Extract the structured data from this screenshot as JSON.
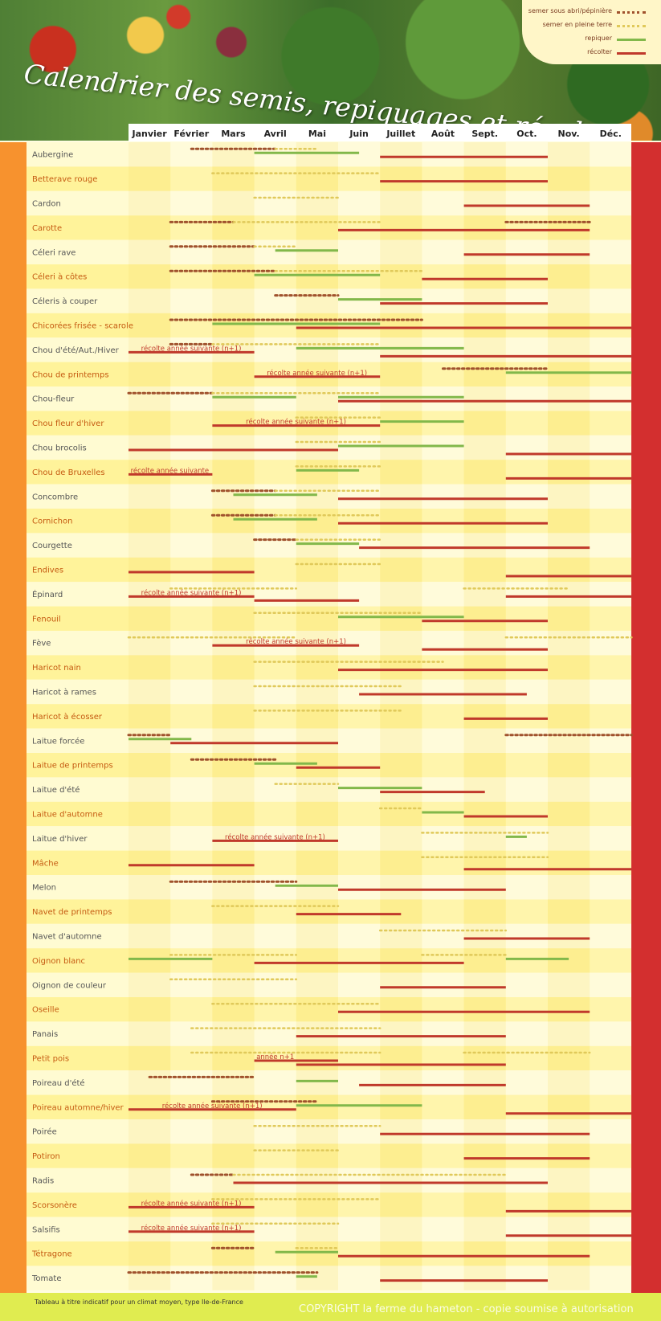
{
  "title": "Calendrier des semis, repiquages et récoltes",
  "legend": {
    "items": [
      {
        "label": "semer sous abri/pépinière",
        "style": "dots",
        "color": "#a0522d"
      },
      {
        "label": "semer en pleine terre",
        "style": "dots-light",
        "color": "#e0c95a"
      },
      {
        "label": "repiquer",
        "style": "line",
        "color": "#82b84a"
      },
      {
        "label": "récolter",
        "style": "line",
        "color": "#c0392b"
      }
    ]
  },
  "footer": {
    "note": "Tableau à titre indicatif pour un climat moyen, type Ile-de-France",
    "copyright": "COPYRIGHT la ferme du hameton - copie soumise à autorisation"
  },
  "colors": {
    "sous_abri": "#a0522d",
    "pleine_terre": "#e0c95a",
    "repiquer": "#82b84a",
    "recolter": "#c0392b",
    "label_orange": "#c55a11",
    "label_gray": "#555555"
  },
  "chart_data": {
    "type": "gantt",
    "months": [
      "Janvier",
      "Février",
      "Mars",
      "Avril",
      "Mai",
      "Juin",
      "Juillet",
      "Août",
      "Sept.",
      "Oct.",
      "Nov.",
      "Déc."
    ],
    "x_unit": "month (1 = début janvier, 13 = fin décembre)",
    "rows": [
      {
        "name": "Aubergine",
        "sous_abri": [
          [
            2.5,
            4.5
          ]
        ],
        "pleine_terre": [
          [
            4.5,
            5.5
          ]
        ],
        "repiquer": [
          [
            4,
            6.5
          ]
        ],
        "recolter": [
          [
            7,
            11
          ]
        ],
        "labels": []
      },
      {
        "name": "Betterave rouge",
        "sous_abri": [],
        "pleine_terre": [
          [
            3,
            7
          ]
        ],
        "repiquer": [],
        "recolter": [
          [
            7,
            11
          ]
        ],
        "labels": []
      },
      {
        "name": "Cardon",
        "sous_abri": [],
        "pleine_terre": [
          [
            4,
            6
          ]
        ],
        "repiquer": [],
        "recolter": [
          [
            9,
            12
          ]
        ],
        "labels": []
      },
      {
        "name": "Carotte",
        "sous_abri": [
          [
            2,
            3.5
          ],
          [
            10,
            12
          ]
        ],
        "pleine_terre": [
          [
            3.5,
            7
          ]
        ],
        "repiquer": [],
        "recolter": [
          [
            6,
            12
          ]
        ],
        "labels": []
      },
      {
        "name": "Céleri rave",
        "sous_abri": [
          [
            2,
            4
          ]
        ],
        "pleine_terre": [
          [
            4,
            5
          ]
        ],
        "repiquer": [
          [
            4.5,
            6
          ]
        ],
        "recolter": [
          [
            9,
            12
          ]
        ],
        "labels": []
      },
      {
        "name": "Céleri à côtes",
        "sous_abri": [
          [
            2,
            4.5
          ]
        ],
        "pleine_terre": [
          [
            4.5,
            8
          ]
        ],
        "repiquer": [
          [
            4,
            7
          ]
        ],
        "recolter": [
          [
            8,
            11
          ]
        ],
        "labels": []
      },
      {
        "name": "Céleris à couper",
        "sous_abri": [
          [
            4.5,
            6
          ]
        ],
        "pleine_terre": [],
        "repiquer": [
          [
            6,
            8
          ]
        ],
        "recolter": [
          [
            7,
            11
          ]
        ],
        "labels": []
      },
      {
        "name": "Chicorées frisée - scarole",
        "sous_abri": [
          [
            2,
            8
          ]
        ],
        "pleine_terre": [],
        "repiquer": [
          [
            3,
            7
          ]
        ],
        "recolter": [
          [
            5,
            13
          ]
        ],
        "labels": []
      },
      {
        "name": "Chou d'été/Aut./Hiver",
        "sous_abri": [
          [
            2,
            3
          ]
        ],
        "pleine_terre": [
          [
            3,
            7
          ]
        ],
        "repiquer": [
          [
            5,
            9
          ]
        ],
        "recolter": [
          [
            1,
            4
          ],
          [
            7,
            13
          ]
        ],
        "labels": [
          {
            "text": "récolte année suivante (n+1)",
            "x": 1.3
          }
        ]
      },
      {
        "name": "Chou de printemps",
        "sous_abri": [
          [
            8.5,
            11
          ]
        ],
        "pleine_terre": [],
        "repiquer": [
          [
            10,
            13
          ]
        ],
        "recolter": [
          [
            4,
            7
          ]
        ],
        "labels": [
          {
            "text": "récolte année suivante (n+1)",
            "x": 4.3
          }
        ]
      },
      {
        "name": "Chou-fleur",
        "sous_abri": [
          [
            1,
            3
          ]
        ],
        "pleine_terre": [
          [
            3,
            7
          ]
        ],
        "repiquer": [
          [
            3,
            5
          ],
          [
            6,
            9
          ]
        ],
        "recolter": [
          [
            6,
            13
          ]
        ],
        "labels": []
      },
      {
        "name": "Chou fleur d'hiver",
        "sous_abri": [],
        "pleine_terre": [
          [
            5,
            7
          ]
        ],
        "repiquer": [
          [
            7,
            9
          ]
        ],
        "recolter": [
          [
            3,
            7
          ]
        ],
        "labels": [
          {
            "text": "récolte année suivante (n+1)",
            "x": 3.8
          }
        ]
      },
      {
        "name": "Chou brocolis",
        "sous_abri": [],
        "pleine_terre": [
          [
            5,
            7
          ]
        ],
        "repiquer": [
          [
            6,
            9
          ]
        ],
        "recolter": [
          [
            1,
            6
          ],
          [
            10,
            13
          ]
        ],
        "labels": []
      },
      {
        "name": "Chou de Bruxelles",
        "sous_abri": [],
        "pleine_terre": [
          [
            5,
            7
          ]
        ],
        "repiquer": [
          [
            5,
            6.5
          ]
        ],
        "recolter": [
          [
            1,
            3
          ],
          [
            10,
            13
          ]
        ],
        "labels": [
          {
            "text": "récolte année suivante",
            "x": 1.05
          }
        ]
      },
      {
        "name": "Concombre",
        "sous_abri": [
          [
            3,
            4.5
          ]
        ],
        "pleine_terre": [
          [
            4.5,
            7
          ]
        ],
        "repiquer": [
          [
            3.5,
            5.5
          ]
        ],
        "recolter": [
          [
            6,
            11
          ]
        ],
        "labels": []
      },
      {
        "name": "Cornichon",
        "sous_abri": [
          [
            3,
            4.5
          ]
        ],
        "pleine_terre": [
          [
            4.5,
            7
          ]
        ],
        "repiquer": [
          [
            3.5,
            5.5
          ]
        ],
        "recolter": [
          [
            6,
            11
          ]
        ],
        "labels": []
      },
      {
        "name": "Courgette",
        "sous_abri": [
          [
            4,
            5
          ]
        ],
        "pleine_terre": [
          [
            5,
            7
          ]
        ],
        "repiquer": [
          [
            5,
            6.5
          ]
        ],
        "recolter": [
          [
            6.5,
            12
          ]
        ],
        "labels": []
      },
      {
        "name": "Endives",
        "sous_abri": [],
        "pleine_terre": [
          [
            5,
            7
          ]
        ],
        "repiquer": [],
        "recolter": [
          [
            1,
            4
          ],
          [
            10,
            13
          ]
        ],
        "labels": []
      },
      {
        "name": "Épinard",
        "sous_abri": [],
        "pleine_terre": [
          [
            2,
            5
          ],
          [
            9,
            11.5
          ]
        ],
        "repiquer": [],
        "recolter": [
          [
            1,
            4
          ],
          [
            4,
            6.5
          ],
          [
            10,
            13
          ]
        ],
        "labels": [
          {
            "text": "récolte année suivante (n+1)",
            "x": 1.3
          }
        ]
      },
      {
        "name": "Fenouil",
        "sous_abri": [],
        "pleine_terre": [
          [
            4,
            8
          ]
        ],
        "repiquer": [
          [
            6,
            9
          ]
        ],
        "recolter": [
          [
            8,
            11
          ]
        ],
        "labels": []
      },
      {
        "name": "Fève",
        "sous_abri": [],
        "pleine_terre": [
          [
            1,
            5
          ],
          [
            10,
            13
          ]
        ],
        "repiquer": [],
        "recolter": [
          [
            3,
            6.5
          ],
          [
            8,
            11
          ]
        ],
        "labels": [
          {
            "text": "récolte année suivante (n+1)",
            "x": 3.8
          }
        ]
      },
      {
        "name": "Haricot nain",
        "sous_abri": [],
        "pleine_terre": [
          [
            4,
            8.5
          ]
        ],
        "repiquer": [],
        "recolter": [
          [
            6,
            11
          ]
        ],
        "labels": []
      },
      {
        "name": "Haricot à rames",
        "sous_abri": [],
        "pleine_terre": [
          [
            4,
            7.5
          ]
        ],
        "repiquer": [],
        "recolter": [
          [
            6.5,
            10.5
          ]
        ],
        "labels": []
      },
      {
        "name": "Haricot à écosser",
        "sous_abri": [],
        "pleine_terre": [
          [
            4,
            7.5
          ]
        ],
        "repiquer": [],
        "recolter": [
          [
            9,
            11
          ]
        ],
        "labels": []
      },
      {
        "name": "Laitue forcée",
        "sous_abri": [
          [
            1,
            2
          ],
          [
            10,
            13
          ]
        ],
        "pleine_terre": [],
        "repiquer": [
          [
            1,
            2.5
          ]
        ],
        "recolter": [
          [
            2,
            6
          ]
        ],
        "labels": []
      },
      {
        "name": "Laitue de printemps",
        "sous_abri": [
          [
            2.5,
            4.5
          ]
        ],
        "pleine_terre": [],
        "repiquer": [
          [
            4,
            5.5
          ]
        ],
        "recolter": [
          [
            5,
            7
          ]
        ],
        "labels": []
      },
      {
        "name": "Laitue d'été",
        "sous_abri": [],
        "pleine_terre": [
          [
            4.5,
            6
          ]
        ],
        "repiquer": [
          [
            6,
            8
          ]
        ],
        "recolter": [
          [
            7,
            9.5
          ]
        ],
        "labels": []
      },
      {
        "name": "Laitue d'automne",
        "sous_abri": [],
        "pleine_terre": [
          [
            7,
            8
          ]
        ],
        "repiquer": [
          [
            8,
            9
          ]
        ],
        "recolter": [
          [
            9,
            11
          ]
        ],
        "labels": []
      },
      {
        "name": "Laitue d'hiver",
        "sous_abri": [],
        "pleine_terre": [
          [
            8,
            11
          ]
        ],
        "repiquer": [
          [
            10,
            10.5
          ]
        ],
        "recolter": [
          [
            3,
            6
          ]
        ],
        "labels": [
          {
            "text": "récolte année suivante (n+1)",
            "x": 3.3
          }
        ]
      },
      {
        "name": "Mâche",
        "sous_abri": [],
        "pleine_terre": [
          [
            8,
            11
          ]
        ],
        "repiquer": [],
        "recolter": [
          [
            1,
            4
          ],
          [
            9,
            13
          ]
        ],
        "labels": []
      },
      {
        "name": "Melon",
        "sous_abri": [
          [
            2,
            5
          ]
        ],
        "pleine_terre": [],
        "repiquer": [
          [
            4.5,
            6
          ]
        ],
        "recolter": [
          [
            6,
            10
          ]
        ],
        "labels": []
      },
      {
        "name": "Navet de printemps",
        "sous_abri": [],
        "pleine_terre": [
          [
            3,
            6
          ]
        ],
        "repiquer": [],
        "recolter": [
          [
            5,
            7.5
          ]
        ],
        "labels": []
      },
      {
        "name": "Navet d'automne",
        "sous_abri": [],
        "pleine_terre": [
          [
            7,
            10
          ]
        ],
        "repiquer": [],
        "recolter": [
          [
            9,
            12
          ]
        ],
        "labels": []
      },
      {
        "name": "Oignon blanc",
        "sous_abri": [],
        "pleine_terre": [
          [
            2,
            5
          ],
          [
            8,
            10
          ]
        ],
        "repiquer": [
          [
            1,
            3
          ],
          [
            10,
            11.5
          ]
        ],
        "recolter": [
          [
            4,
            9
          ]
        ],
        "labels": []
      },
      {
        "name": "Oignon de couleur",
        "sous_abri": [],
        "pleine_terre": [
          [
            2,
            5
          ]
        ],
        "repiquer": [],
        "recolter": [
          [
            7,
            10
          ]
        ],
        "labels": []
      },
      {
        "name": "Oseille",
        "sous_abri": [],
        "pleine_terre": [
          [
            3,
            7
          ]
        ],
        "repiquer": [],
        "recolter": [
          [
            6,
            12
          ]
        ],
        "labels": []
      },
      {
        "name": "Panais",
        "sous_abri": [],
        "pleine_terre": [
          [
            2.5,
            7
          ]
        ],
        "repiquer": [],
        "recolter": [
          [
            5,
            10
          ]
        ],
        "labels": []
      },
      {
        "name": "Petit pois",
        "sous_abri": [],
        "pleine_terre": [
          [
            2.5,
            7
          ],
          [
            9,
            12
          ]
        ],
        "repiquer": [],
        "recolter": [
          [
            4,
            6
          ],
          [
            5,
            10
          ]
        ],
        "labels": [
          {
            "text": "année n+1",
            "x": 4.05
          }
        ]
      },
      {
        "name": "Poireau d'été",
        "sous_abri": [
          [
            1.5,
            4
          ]
        ],
        "pleine_terre": [],
        "repiquer": [
          [
            5,
            6
          ]
        ],
        "recolter": [
          [
            6.5,
            10
          ]
        ],
        "labels": []
      },
      {
        "name": "Poireau automne/hiver",
        "sous_abri": [
          [
            3,
            5.5
          ]
        ],
        "pleine_terre": [],
        "repiquer": [
          [
            5,
            8
          ]
        ],
        "recolter": [
          [
            1,
            5
          ],
          [
            10,
            13
          ]
        ],
        "labels": [
          {
            "text": "récolte année suivante (n+1)",
            "x": 1.8
          }
        ]
      },
      {
        "name": "Poirée",
        "sous_abri": [],
        "pleine_terre": [
          [
            4,
            7
          ]
        ],
        "repiquer": [],
        "recolter": [
          [
            7,
            12
          ]
        ],
        "labels": []
      },
      {
        "name": "Potiron",
        "sous_abri": [],
        "pleine_terre": [
          [
            4,
            6
          ]
        ],
        "repiquer": [],
        "recolter": [
          [
            9,
            12
          ]
        ],
        "labels": []
      },
      {
        "name": "Radis",
        "sous_abri": [
          [
            2.5,
            3.5
          ]
        ],
        "pleine_terre": [
          [
            3.5,
            10
          ]
        ],
        "repiquer": [],
        "recolter": [
          [
            3.5,
            11
          ]
        ],
        "labels": []
      },
      {
        "name": "Scorsonère",
        "sous_abri": [],
        "pleine_terre": [
          [
            3,
            7
          ]
        ],
        "repiquer": [],
        "recolter": [
          [
            1,
            4
          ],
          [
            10,
            13
          ]
        ],
        "labels": [
          {
            "text": "récolte année suivante (n+1)",
            "x": 1.3
          }
        ]
      },
      {
        "name": "Salsifis",
        "sous_abri": [],
        "pleine_terre": [
          [
            3,
            6
          ]
        ],
        "repiquer": [],
        "recolter": [
          [
            1,
            4
          ],
          [
            10,
            13
          ]
        ],
        "labels": [
          {
            "text": "récolte année suivante (n+1)",
            "x": 1.3
          }
        ]
      },
      {
        "name": "Tétragone",
        "sous_abri": [
          [
            3,
            4
          ]
        ],
        "pleine_terre": [
          [
            5,
            6
          ]
        ],
        "repiquer": [
          [
            4.5,
            6
          ]
        ],
        "recolter": [
          [
            6,
            12
          ]
        ],
        "labels": []
      },
      {
        "name": "Tomate",
        "sous_abri": [
          [
            1,
            5.5
          ]
        ],
        "pleine_terre": [],
        "repiquer": [
          [
            5,
            5.5
          ]
        ],
        "recolter": [
          [
            7,
            11
          ]
        ],
        "labels": []
      }
    ]
  }
}
